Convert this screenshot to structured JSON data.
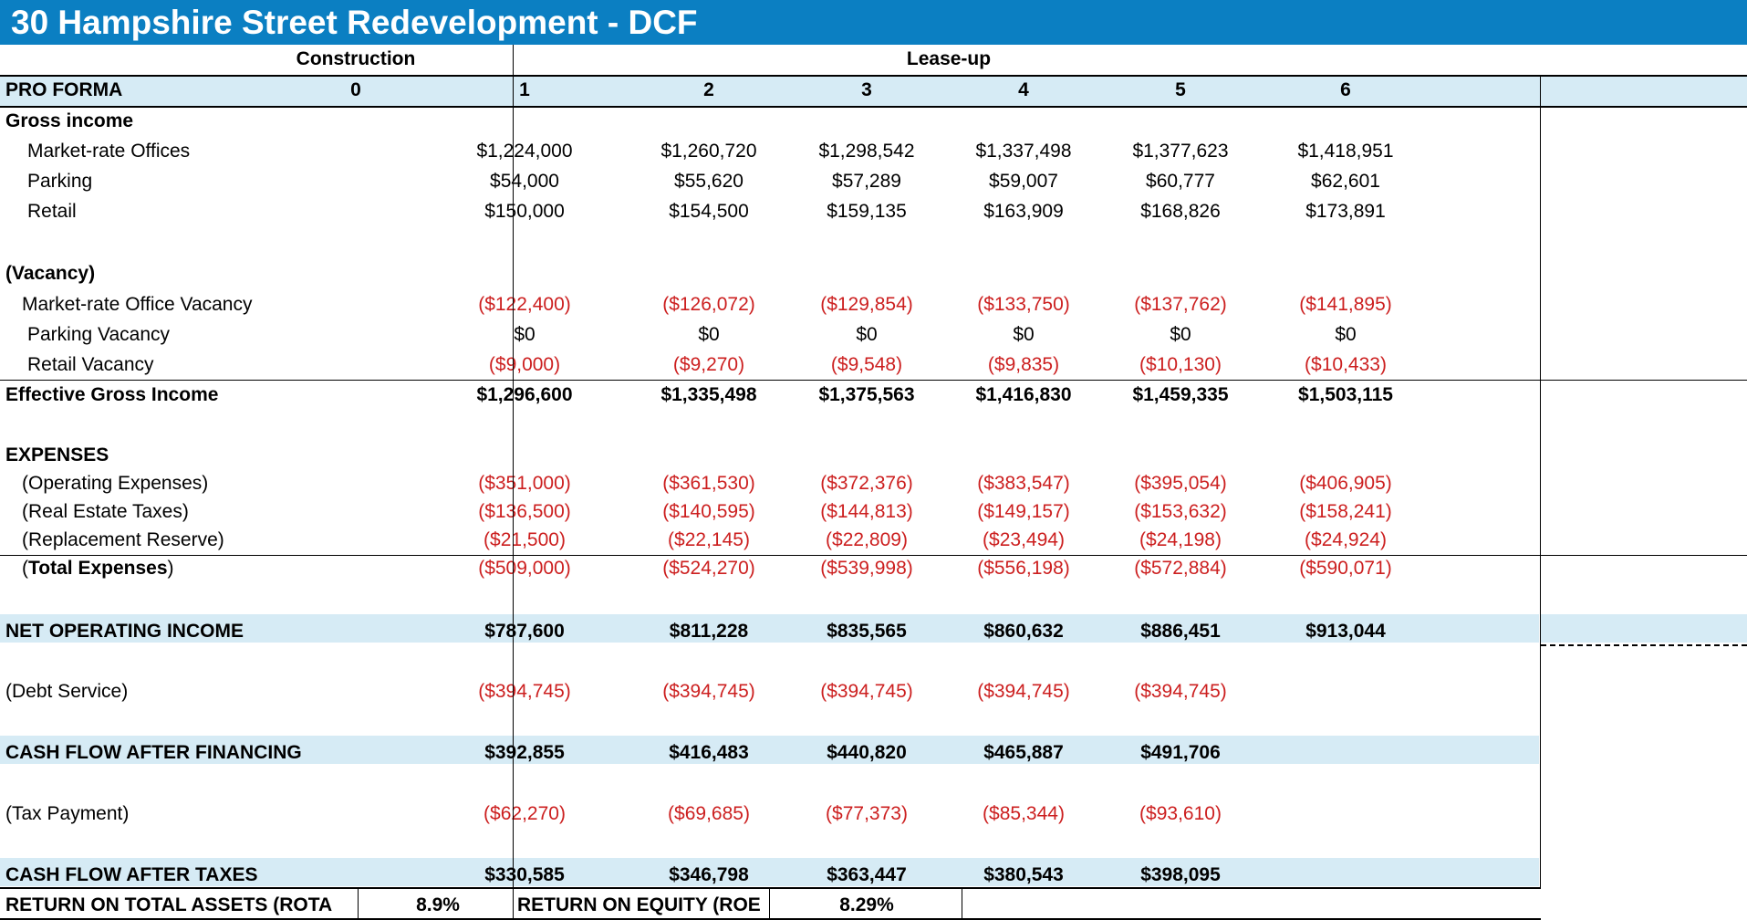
{
  "title": "30 Hampshire Street Redevelopment - DCF",
  "phases": {
    "construction": "Construction",
    "leaseup": "Lease-up"
  },
  "header": {
    "label": "PRO FORMA",
    "years": [
      "0",
      "1",
      "2",
      "3",
      "4",
      "5",
      "6"
    ]
  },
  "rows": [
    {
      "label": "Gross income",
      "values": [],
      "bold": true,
      "neg": false
    },
    {
      "label": "Market-rate Offices",
      "values": [
        "",
        "$1,224,000",
        "$1,260,720",
        "$1,298,542",
        "$1,337,498",
        "$1,377,623",
        "$1,418,951"
      ],
      "bold": false,
      "neg": false
    },
    {
      "label": "Parking",
      "values": [
        "",
        "$54,000",
        "$55,620",
        "$57,289",
        "$59,007",
        "$60,777",
        "$62,601"
      ],
      "bold": false,
      "neg": false
    },
    {
      "label": "Retail",
      "values": [
        "",
        "$150,000",
        "$154,500",
        "$159,135",
        "$163,909",
        "$168,826",
        "$173,891"
      ],
      "bold": false,
      "neg": false
    },
    {
      "label": "(Vacancy)",
      "values": [],
      "bold": true,
      "neg": false
    },
    {
      "label": "Market-rate Office Vacancy",
      "values": [
        "",
        "($122,400)",
        "($126,072)",
        "($129,854)",
        "($133,750)",
        "($137,762)",
        "($141,895)"
      ],
      "bold": false,
      "neg": true
    },
    {
      "label": "Parking Vacancy",
      "values": [
        "",
        "$0",
        "$0",
        "$0",
        "$0",
        "$0",
        "$0"
      ],
      "bold": false,
      "neg": false
    },
    {
      "label": "Retail Vacancy",
      "values": [
        "",
        "($9,000)",
        "($9,270)",
        "($9,548)",
        "($9,835)",
        "($10,130)",
        "($10,433)"
      ],
      "bold": false,
      "neg": true
    },
    {
      "label": "Effective Gross Income",
      "values": [
        "",
        "$1,296,600",
        "$1,335,498",
        "$1,375,563",
        "$1,416,830",
        "$1,459,335",
        "$1,503,115"
      ],
      "bold": true,
      "neg": false
    },
    {
      "label": "EXPENSES",
      "values": [],
      "bold": true,
      "neg": false
    },
    {
      "label": "(Operating Expenses)",
      "values": [
        "",
        "($351,000)",
        "($361,530)",
        "($372,376)",
        "($383,547)",
        "($395,054)",
        "($406,905)"
      ],
      "bold": false,
      "neg": true
    },
    {
      "label": "(Real Estate Taxes)",
      "values": [
        "",
        "($136,500)",
        "($140,595)",
        "($144,813)",
        "($149,157)",
        "($153,632)",
        "($158,241)"
      ],
      "bold": false,
      "neg": true
    },
    {
      "label": "(Replacement Reserve)",
      "values": [
        "",
        "($21,500)",
        "($22,145)",
        "($22,809)",
        "($23,494)",
        "($24,198)",
        "($24,924)"
      ],
      "bold": false,
      "neg": true
    },
    {
      "label": "(Total Expenses)",
      "values": [
        "",
        "($509,000)",
        "($524,270)",
        "($539,998)",
        "($556,198)",
        "($572,884)",
        "($590,071)"
      ],
      "bold": true,
      "neg": true
    },
    {
      "label": "NET OPERATING INCOME",
      "values": [
        "",
        "$787,600",
        "$811,228",
        "$835,565",
        "$860,632",
        "$886,451",
        "$913,044"
      ],
      "bold": true,
      "neg": false
    },
    {
      "label": "(Debt Service)",
      "values": [
        "",
        "($394,745)",
        "($394,745)",
        "($394,745)",
        "($394,745)",
        "($394,745)",
        ""
      ],
      "bold": false,
      "neg": true
    },
    {
      "label": "CASH FLOW AFTER FINANCING",
      "values": [
        "",
        "$392,855",
        "$416,483",
        "$440,820",
        "$465,887",
        "$491,706",
        ""
      ],
      "bold": true,
      "neg": false
    },
    {
      "label": "(Tax Payment)",
      "values": [
        "",
        "($62,270)",
        "($69,685)",
        "($77,373)",
        "($85,344)",
        "($93,610)",
        ""
      ],
      "bold": false,
      "neg": true
    },
    {
      "label": "CASH FLOW AFTER TAXES",
      "values": [
        "",
        "$330,585",
        "$346,798",
        "$363,447",
        "$380,543",
        "$398,095",
        ""
      ],
      "bold": true,
      "neg": false
    }
  ],
  "returns": {
    "rota_label": "RETURN ON TOTAL ASSETS (ROTA",
    "rota_value": "8.9%",
    "roe_label": "RETURN ON EQUITY (ROE",
    "roe_value": "8.29%"
  }
}
